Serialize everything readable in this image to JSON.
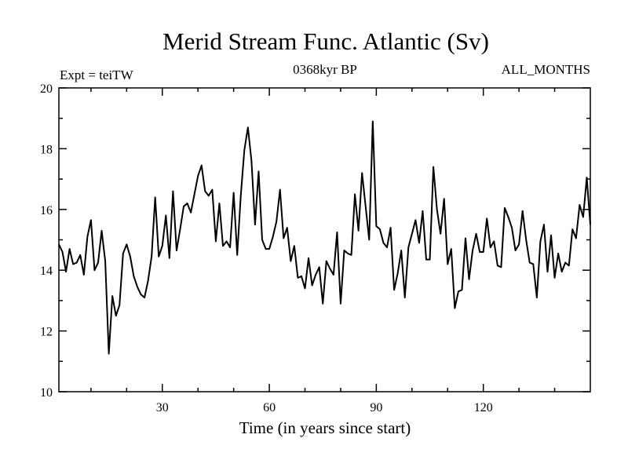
{
  "chart_data": {
    "type": "line",
    "title": "Merid Stream Func. Atlantic (Sv)",
    "left_label": "Expt = teiTW",
    "center_label": "0368kyr BP",
    "right_label": "ALL_MONTHS",
    "xlabel": "Time (in years since start)",
    "ylabel": "",
    "xlim": [
      1,
      150
    ],
    "ylim": [
      10,
      20
    ],
    "x_ticks": [
      30,
      60,
      90,
      120
    ],
    "y_ticks": [
      10,
      12,
      14,
      16,
      18,
      20
    ],
    "x_start": 1,
    "x_step": 1,
    "color": "#000000",
    "series": [
      {
        "name": "Merid Stream Func.",
        "values": [
          14.85,
          14.6,
          13.95,
          14.7,
          14.2,
          14.25,
          14.5,
          13.85,
          15.1,
          15.65,
          14.0,
          14.25,
          15.3,
          14.3,
          11.25,
          13.15,
          12.5,
          12.85,
          14.55,
          14.85,
          14.45,
          13.8,
          13.45,
          13.2,
          13.1,
          13.65,
          14.45,
          16.4,
          14.45,
          14.8,
          15.8,
          14.4,
          16.6,
          14.65,
          15.35,
          16.1,
          16.2,
          15.9,
          16.5,
          17.1,
          17.45,
          16.6,
          16.45,
          16.65,
          14.95,
          16.2,
          14.8,
          14.95,
          14.75,
          16.55,
          14.5,
          16.45,
          17.95,
          18.7,
          17.6,
          15.5,
          17.25,
          15.0,
          14.7,
          14.7,
          15.1,
          15.6,
          16.65,
          15.05,
          15.4,
          14.3,
          14.8,
          13.75,
          13.8,
          13.4,
          14.4,
          13.5,
          13.85,
          14.1,
          12.9,
          14.3,
          14.05,
          13.85,
          15.25,
          12.9,
          14.65,
          14.55,
          14.5,
          16.5,
          15.3,
          17.2,
          16.1,
          15.0,
          18.9,
          15.45,
          15.35,
          14.9,
          14.75,
          15.4,
          13.35,
          13.9,
          14.65,
          13.1,
          14.75,
          15.2,
          15.65,
          14.9,
          15.95,
          14.35,
          14.35,
          17.4,
          16.0,
          15.2,
          16.35,
          14.2,
          14.7,
          12.75,
          13.3,
          13.35,
          15.05,
          13.7,
          14.65,
          15.2,
          14.6,
          14.6,
          15.7,
          14.75,
          14.95,
          14.15,
          14.1,
          16.05,
          15.75,
          15.4,
          14.65,
          14.85,
          15.95,
          15.0,
          14.25,
          14.2,
          13.1,
          14.95,
          15.5,
          13.95,
          15.15,
          13.75,
          14.55,
          13.95,
          14.25,
          14.15,
          15.35,
          15.05,
          16.15,
          15.75,
          17.05,
          15.5
        ]
      }
    ]
  }
}
